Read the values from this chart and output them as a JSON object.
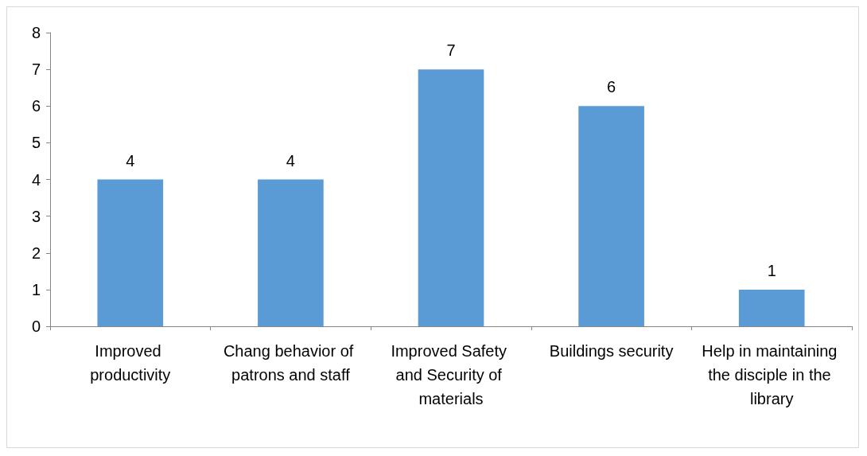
{
  "chart_data": {
    "type": "bar",
    "categories": [
      "Improved productivity",
      "Chang behavior of patrons and staff",
      "Improved Safety and Security of materials",
      "Buildings security",
      "Help in maintaining the disciple in the library"
    ],
    "values": [
      4,
      4,
      7,
      6,
      1
    ],
    "color": "#5b9bd5",
    "ylim": [
      0,
      8
    ],
    "yticks": [
      0,
      1,
      2,
      3,
      4,
      5,
      6,
      7,
      8
    ],
    "grid": false,
    "data_labels": true
  }
}
